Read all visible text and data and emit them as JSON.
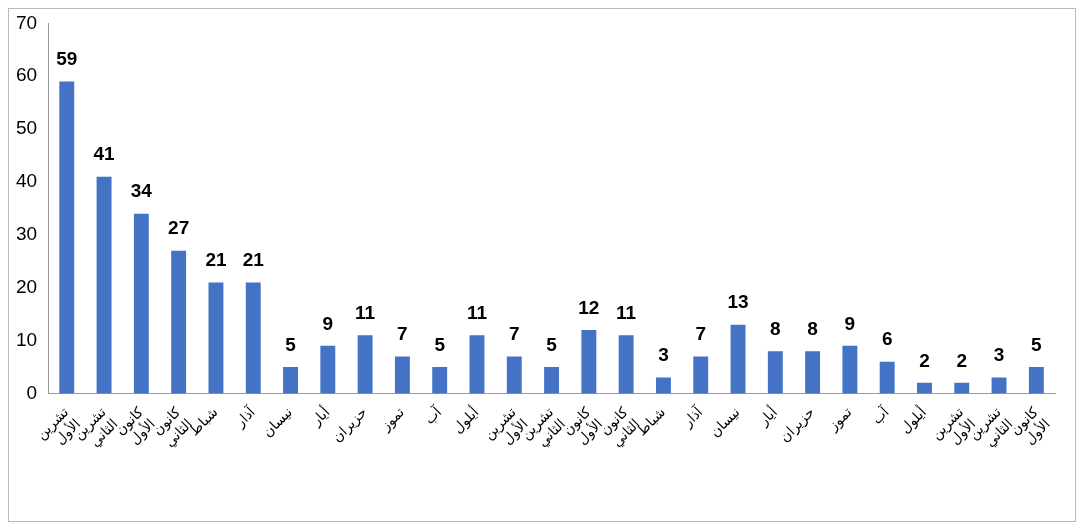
{
  "chart_data": {
    "type": "bar",
    "categories": [
      "تشرين الأول",
      "تشرين الثاني",
      "كانون الأول",
      "كانون الثاني",
      "شباط",
      "آذار",
      "نيسان",
      "أيار",
      "حزيران",
      "تموز",
      "آب",
      "أيلول",
      "تشرين الأول",
      "تشرين الثاني",
      "كانون الأول",
      "كانون الثاني",
      "شباط",
      "آذار",
      "نيسان",
      "أيار",
      "حزيران",
      "تموز",
      "آب",
      "أيلول",
      "تشرين الأول",
      "تشرين الثاني",
      "كانون الأول"
    ],
    "values": [
      59,
      41,
      34,
      27,
      21,
      21,
      5,
      9,
      11,
      7,
      5,
      11,
      7,
      5,
      12,
      11,
      3,
      7,
      13,
      8,
      8,
      9,
      6,
      2,
      2,
      3,
      5
    ],
    "color": "#4472c4",
    "ylim": [
      0,
      70
    ],
    "yticks": [
      0,
      10,
      20,
      30,
      40,
      50,
      60,
      70
    ],
    "grid": false,
    "legend": false,
    "data_labels": true
  }
}
